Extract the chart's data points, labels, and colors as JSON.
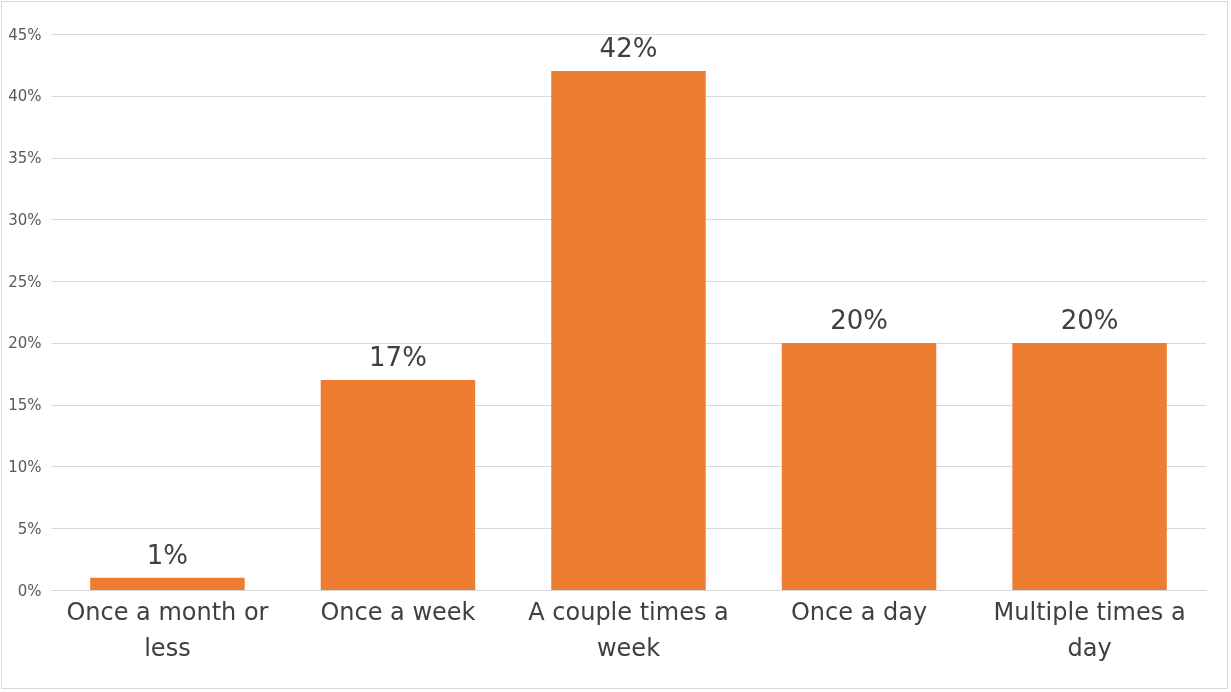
{
  "chart_data": {
    "type": "bar",
    "categories": [
      "Once a month or less",
      "Once a week",
      "A couple times a week",
      "Once a day",
      "Multiple times a day"
    ],
    "values": [
      1,
      17,
      42,
      20,
      20
    ],
    "value_labels": [
      "1%",
      "17%",
      "42%",
      "20%",
      "20%"
    ],
    "color": "#ed7d31",
    "ylim": [
      0,
      45
    ],
    "yticks": [
      {
        "value": 0,
        "label": "0%"
      },
      {
        "value": 5,
        "label": "5%"
      },
      {
        "value": 10,
        "label": "10%"
      },
      {
        "value": 15,
        "label": "15%"
      },
      {
        "value": 20,
        "label": "20%"
      },
      {
        "value": 25,
        "label": "25%"
      },
      {
        "value": 30,
        "label": "30%"
      },
      {
        "value": 35,
        "label": "35%"
      },
      {
        "value": 40,
        "label": "40%"
      },
      {
        "value": 45,
        "label": "45%"
      }
    ],
    "grid": "y"
  }
}
